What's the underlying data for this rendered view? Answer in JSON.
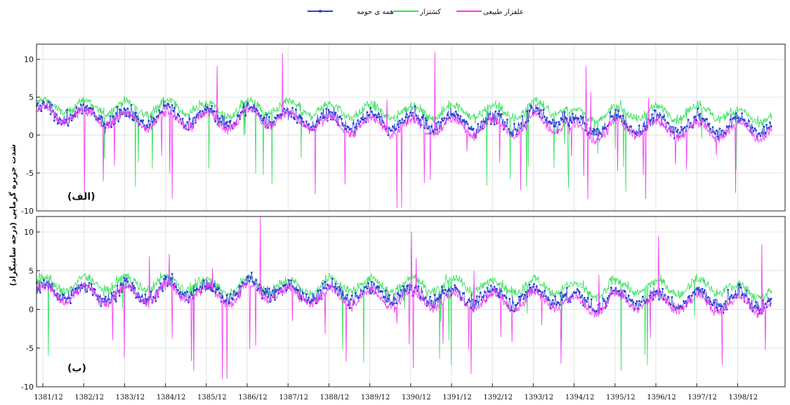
{
  "chart_data": {
    "type": "line",
    "ylabel": "شدت جزیره گرمایی (درجه سانتیگراد)",
    "ylim": [
      -10,
      12
    ],
    "yticks": [
      -10,
      -5,
      0,
      5,
      10
    ],
    "ytick_labels": [
      "-10",
      "-5",
      "0",
      "5",
      "10"
    ],
    "grid": true,
    "legend_position": "top-center",
    "legend": [
      {
        "name": "همه ی حومه",
        "color": "#2b3bd8",
        "style": "line-with-markers"
      },
      {
        "name": "کشتزار",
        "color": "#33e05a",
        "style": "line"
      },
      {
        "name": "علفزار طبیعی",
        "color": "#f23af2",
        "style": "line"
      }
    ],
    "x_tick_labels": [
      "1381/12",
      "1382/12",
      "1383/12",
      "1384/12",
      "1385/12",
      "1386/12",
      "1387/12",
      "1388/12",
      "1389/12",
      "1390/12",
      "1391/12",
      "1392/12",
      "1393/12",
      "1394/12",
      "1395/12",
      "1396/12",
      "1397/12",
      "1398/12"
    ],
    "panels": [
      {
        "label": "(الف)",
        "series": [
          {
            "name": "همه ی حومه",
            "color": "#2b3bd8",
            "seasonal_values": [
              2.9,
              2.6,
              2.3,
              2.6,
              2.3,
              2.7,
              2.2,
              1.9,
              1.9,
              1.8,
              1.7,
              1.6,
              2.3,
              1.2,
              1.5,
              1.4,
              1.3,
              1.2
            ]
          },
          {
            "name": "کشتزار",
            "color": "#33e05a",
            "seasonal_values": [
              3.8,
              3.7,
              3.6,
              3.7,
              3.3,
              3.6,
              3.5,
              3.2,
              3.1,
              3.0,
              3.2,
              3.1,
              3.6,
              2.6,
              3.0,
              2.9,
              3.1,
              2.4
            ]
          },
          {
            "name": "علفزار طبیعی",
            "color": "#f23af2",
            "seasonal_values": [
              2.7,
              2.3,
              1.9,
              2.1,
              1.9,
              2.4,
              1.8,
              1.3,
              1.2,
              1.1,
              1.1,
              1.0,
              1.6,
              0.4,
              1.0,
              0.8,
              0.6,
              0.6
            ]
          }
        ]
      },
      {
        "label": "(ب)",
        "series": [
          {
            "name": "همه ی حومه",
            "color": "#2b3bd8",
            "seasonal_values": [
              2.3,
              2.1,
              2.1,
              2.6,
              2.3,
              2.9,
              2.1,
              2.1,
              2.0,
              1.9,
              1.7,
              1.7,
              1.8,
              1.1,
              1.5,
              1.3,
              1.4,
              1.1
            ]
          },
          {
            "name": "کشتزار",
            "color": "#33e05a",
            "seasonal_values": [
              3.2,
              3.3,
              3.4,
              3.4,
              3.0,
              3.2,
              2.9,
              3.2,
              3.1,
              3.2,
              3.2,
              2.9,
              3.0,
              2.4,
              3.0,
              2.8,
              3.0,
              2.3
            ]
          },
          {
            "name": "علفزار طبیعی",
            "color": "#f23af2",
            "seasonal_values": [
              2.2,
              1.9,
              1.8,
              2.2,
              1.8,
              2.3,
              1.7,
              1.5,
              1.4,
              1.3,
              1.1,
              1.1,
              1.2,
              0.5,
              1.1,
              0.9,
              0.7,
              0.6
            ]
          }
        ]
      }
    ]
  }
}
